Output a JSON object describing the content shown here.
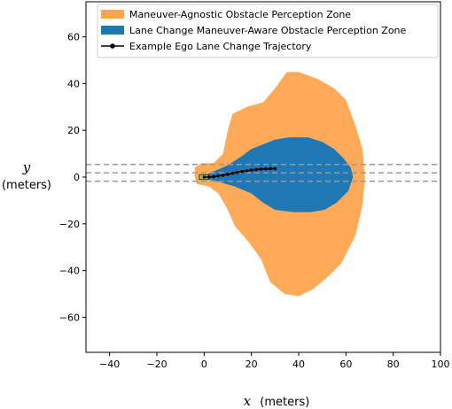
{
  "chart_data": {
    "type": "area",
    "xlim": [
      -50,
      100
    ],
    "ylim": [
      -75,
      75
    ],
    "x_ticks": [
      -40,
      -20,
      0,
      20,
      40,
      60,
      80,
      100
    ],
    "y_ticks": [
      -60,
      -40,
      -20,
      0,
      20,
      40,
      60
    ],
    "x_tick_labels": [
      "−40",
      "−20",
      "0",
      "20",
      "40",
      "60",
      "80",
      "100"
    ],
    "y_tick_labels": [
      "−60",
      "−40",
      "−20",
      "0",
      "20",
      "40",
      "60"
    ],
    "xlabel_var": "x",
    "xlabel_unit": "(meters)",
    "ylabel_var": "y",
    "ylabel_unit": "(meters)",
    "legend_position": "top-right",
    "lane_lines_y": [
      -1.8,
      1.8,
      5.4
    ],
    "series": [
      {
        "name": "Maneuver-Agnostic Obstacle Perception Zone",
        "color": "#ffa54f",
        "outline": [
          [
            -4,
            0
          ],
          [
            -4,
            4
          ],
          [
            -1,
            6
          ],
          [
            4,
            6
          ],
          [
            8,
            10
          ],
          [
            10,
            20
          ],
          [
            12,
            27
          ],
          [
            18,
            30
          ],
          [
            25,
            32
          ],
          [
            30,
            38
          ],
          [
            35,
            45
          ],
          [
            40,
            45
          ],
          [
            48,
            42
          ],
          [
            55,
            38
          ],
          [
            60,
            33
          ],
          [
            64,
            22
          ],
          [
            67,
            12
          ],
          [
            68,
            0
          ],
          [
            67,
            -12
          ],
          [
            64,
            -25
          ],
          [
            58,
            -37
          ],
          [
            52,
            -43
          ],
          [
            46,
            -48
          ],
          [
            40,
            -51
          ],
          [
            34,
            -50
          ],
          [
            28,
            -45
          ],
          [
            24,
            -35
          ],
          [
            19,
            -28
          ],
          [
            13,
            -21
          ],
          [
            10,
            -14
          ],
          [
            6,
            -7
          ],
          [
            2,
            -4
          ],
          [
            -3,
            -3
          ]
        ]
      },
      {
        "name": "Lane Change Maneuver-Aware Obstacle Perception Zone",
        "color": "#1f77b4",
        "outline": [
          [
            -1,
            0
          ],
          [
            3,
            2
          ],
          [
            10,
            5
          ],
          [
            16,
            9
          ],
          [
            20,
            12
          ],
          [
            25,
            14
          ],
          [
            30,
            16
          ],
          [
            36,
            17
          ],
          [
            44,
            17
          ],
          [
            50,
            15
          ],
          [
            55,
            12
          ],
          [
            59,
            8
          ],
          [
            62,
            4
          ],
          [
            63,
            0
          ],
          [
            61,
            -6
          ],
          [
            56,
            -11
          ],
          [
            51,
            -14
          ],
          [
            45,
            -15
          ],
          [
            38,
            -15
          ],
          [
            30,
            -14
          ],
          [
            25,
            -11
          ],
          [
            20,
            -7
          ],
          [
            13,
            -4
          ],
          [
            6,
            -2
          ],
          [
            2,
            -1
          ]
        ]
      },
      {
        "name": "Example Ego Lane Change Trajectory",
        "color": "#000000",
        "points": [
          [
            0,
            0
          ],
          [
            2,
            0
          ],
          [
            4,
            0.2
          ],
          [
            6,
            0.5
          ],
          [
            8,
            0.8
          ],
          [
            10,
            1.2
          ],
          [
            12,
            1.6
          ],
          [
            14,
            2.0
          ],
          [
            16,
            2.4
          ],
          [
            18,
            2.7
          ],
          [
            20,
            3.0
          ],
          [
            22,
            3.2
          ],
          [
            24,
            3.4
          ],
          [
            26,
            3.5
          ],
          [
            28,
            3.6
          ],
          [
            30,
            3.6
          ]
        ]
      }
    ],
    "ego_vehicle": {
      "x": 0,
      "y": 0,
      "color": "#a4cc3a"
    }
  }
}
